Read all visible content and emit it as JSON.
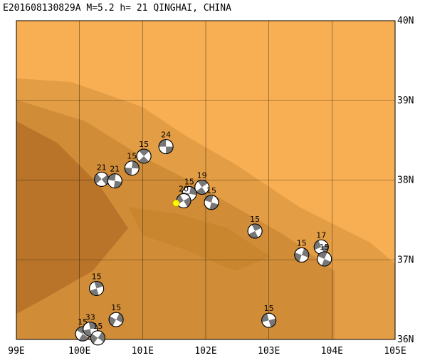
{
  "map": {
    "title": "E201608130829A M=5.2 h= 21 QINGHAI, CHINA",
    "xlim": [
      99,
      105
    ],
    "ylim": [
      36,
      40
    ],
    "xticks": [
      {
        "value": 99,
        "label": "99E"
      },
      {
        "value": 100,
        "label": "100E"
      },
      {
        "value": 101,
        "label": "101E"
      },
      {
        "value": 102,
        "label": "102E"
      },
      {
        "value": 103,
        "label": "103E"
      },
      {
        "value": 104,
        "label": "104E"
      },
      {
        "value": 105,
        "label": "105E"
      }
    ],
    "yticks": [
      {
        "value": 36,
        "label": "36N"
      },
      {
        "value": 37,
        "label": "37N"
      },
      {
        "value": 38,
        "label": "38N"
      },
      {
        "value": 39,
        "label": "39N"
      },
      {
        "value": 40,
        "label": "40N"
      }
    ],
    "epicenter": {
      "lon": 101.53,
      "lat": 37.71
    },
    "events": [
      {
        "lon": 101.37,
        "lat": 38.42,
        "depth": 24
      },
      {
        "lon": 101.02,
        "lat": 38.3,
        "depth": 15
      },
      {
        "lon": 100.83,
        "lat": 38.15,
        "depth": 15
      },
      {
        "lon": 100.35,
        "lat": 38.01,
        "depth": 21
      },
      {
        "lon": 100.56,
        "lat": 37.99,
        "depth": 21
      },
      {
        "lon": 101.94,
        "lat": 37.91,
        "depth": 19
      },
      {
        "lon": 101.74,
        "lat": 37.83,
        "depth": 15
      },
      {
        "lon": 101.65,
        "lat": 37.74,
        "depth": 20
      },
      {
        "lon": 102.09,
        "lat": 37.72,
        "depth": 15
      },
      {
        "lon": 102.78,
        "lat": 37.36,
        "depth": 15
      },
      {
        "lon": 103.52,
        "lat": 37.06,
        "depth": 15
      },
      {
        "lon": 103.83,
        "lat": 37.16,
        "depth": 17
      },
      {
        "lon": 103.88,
        "lat": 37.01,
        "depth": 15
      },
      {
        "lon": 100.27,
        "lat": 36.64,
        "depth": 15
      },
      {
        "lon": 100.58,
        "lat": 36.25,
        "depth": 15
      },
      {
        "lon": 103.0,
        "lat": 36.24,
        "depth": 15
      },
      {
        "lon": 100.05,
        "lat": 36.07,
        "depth": 15
      },
      {
        "lon": 100.17,
        "lat": 36.13,
        "depth": 33
      },
      {
        "lon": 100.29,
        "lat": 36.02,
        "depth": 15
      }
    ]
  }
}
